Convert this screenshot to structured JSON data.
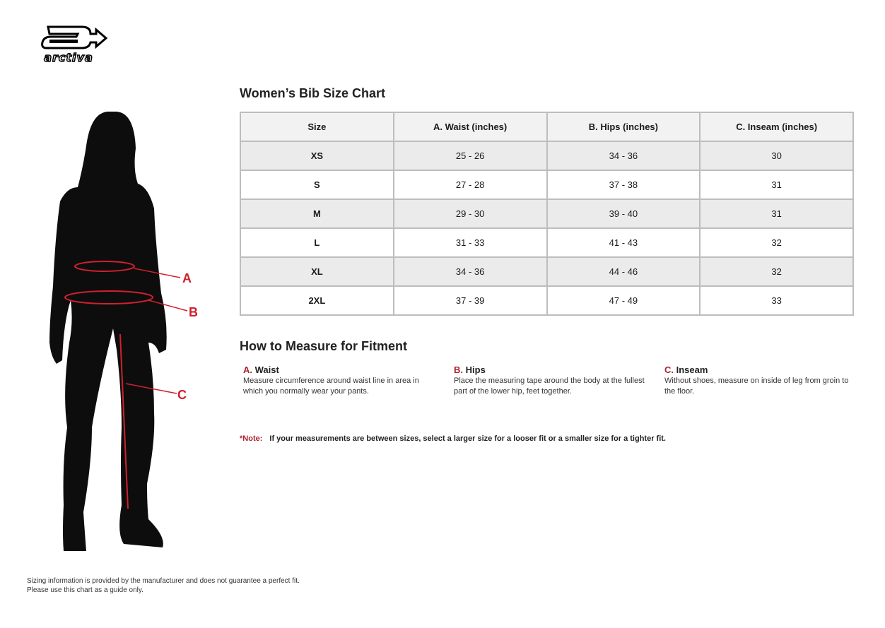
{
  "brand": {
    "logo_text": "arctiva"
  },
  "chart": {
    "title": "Women’s Bib Size Chart",
    "headers": [
      "Size",
      "A. Waist (inches)",
      "B. Hips (inches)",
      "C. Inseam (inches)"
    ],
    "rows": [
      [
        "XS",
        "25 - 26",
        "34 - 36",
        "30"
      ],
      [
        "S",
        "27 - 28",
        "37 - 38",
        "31"
      ],
      [
        "M",
        "29 - 30",
        "39 - 40",
        "31"
      ],
      [
        "L",
        "31 - 33",
        "41 - 43",
        "32"
      ],
      [
        "XL",
        "34 - 36",
        "44 - 46",
        "32"
      ],
      [
        "2XL",
        "37 - 39",
        "47 - 49",
        "33"
      ]
    ]
  },
  "figure": {
    "labels": [
      "A",
      "B",
      "C"
    ],
    "accent": "#d0202e"
  },
  "measure": {
    "title": "How to Measure for Fitment",
    "items": [
      {
        "letter": "A.",
        "name": "Waist",
        "desc": "Measure circumference around waist line in area in which you normally wear your pants."
      },
      {
        "letter": "B.",
        "name": "Hips",
        "desc": "Place the measuring tape around the body at the fullest part of the lower hip, feet together."
      },
      {
        "letter": "C.",
        "name": "Inseam",
        "desc": "Without shoes, measure on inside of leg from groin to the floor."
      }
    ]
  },
  "note": {
    "label": "*Note:",
    "text": "If your measurements are between sizes, select a larger size for a looser fit or a smaller size for a tighter fit."
  },
  "footer": {
    "line1": "Sizing information is provided by the manufacturer and does not guarantee a perfect fit.",
    "line2": "Please use this chart as a guide only."
  }
}
